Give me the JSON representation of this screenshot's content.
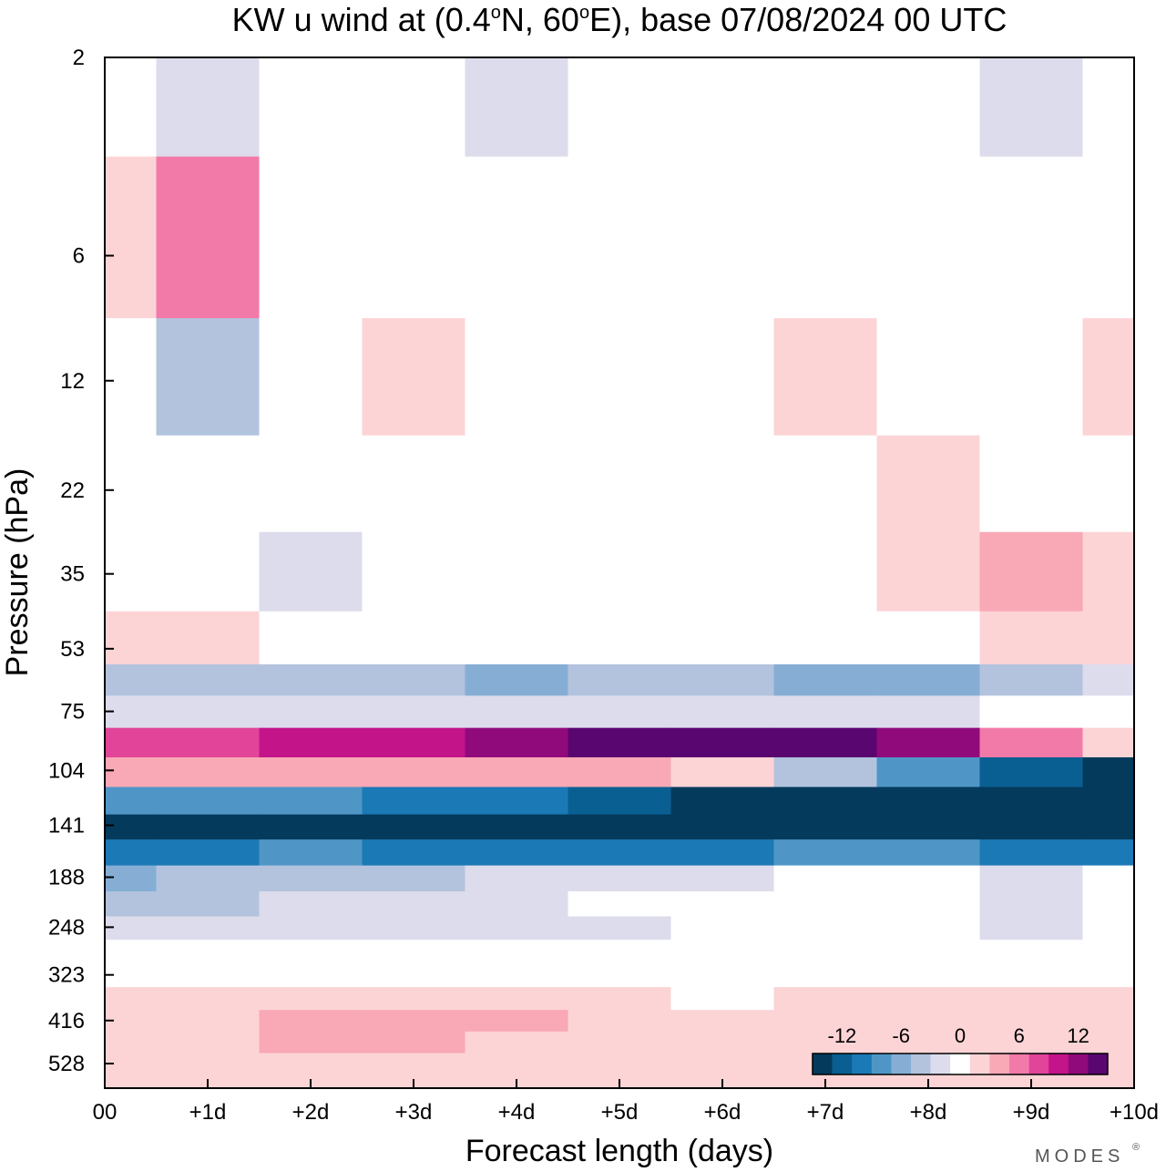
{
  "chart_data": {
    "type": "heatmap",
    "title_prefix": "KW u wind at (0.4",
    "title_lat": "N, 60",
    "title_suffix": "E),  base 07/08/2024  00 UTC",
    "title_deg": "o",
    "xlabel": "Forecast length (days)",
    "ylabel": "Pressure (hPa)",
    "x_tick_labels": [
      "00",
      "+1d",
      "+2d",
      "+3d",
      "+4d",
      "+5d",
      "+6d",
      "+7d",
      "+8d",
      "+9d",
      "+10d"
    ],
    "xlim": [
      0,
      10
    ],
    "y_tick_labels": [
      "2",
      "6",
      "12",
      "22",
      "35",
      "53",
      "75",
      "104",
      "141",
      "188",
      "248",
      "323",
      "416",
      "528"
    ],
    "colorbar": {
      "tick_labels": [
        "-12",
        "-6",
        "0",
        "6",
        "12"
      ],
      "colors": [
        "#043a5c",
        "#0a5f92",
        "#1b79b6",
        "#4f96c6",
        "#86aed5",
        "#b3c3de",
        "#dcdcec",
        "#ffffff",
        "#fcd4d6",
        "#f9a8b6",
        "#f27aa8",
        "#e14499",
        "#c3148a",
        "#900a7c",
        "#5a0670"
      ]
    },
    "bands": [
      {
        "pressure": 2,
        "u": [
          0,
          -2,
          0,
          0,
          -3,
          0,
          -1,
          0,
          0,
          -3,
          0
        ]
      },
      {
        "pressure": 6,
        "u": [
          2,
          5,
          0,
          0,
          0,
          -1,
          0,
          0,
          0,
          0,
          0
        ]
      },
      {
        "pressure": 12,
        "u": [
          -1,
          -4,
          0,
          2,
          0,
          -1,
          0,
          2,
          -1,
          0,
          2
        ]
      },
      {
        "pressure": 22,
        "u": [
          0,
          0,
          -1,
          0,
          0,
          0,
          0,
          0,
          2,
          -1,
          -1
        ]
      },
      {
        "pressure": 35,
        "u": [
          0,
          -1,
          -2,
          0,
          0,
          0,
          -1,
          0,
          2,
          3,
          2
        ]
      },
      {
        "pressure": 53,
        "u": [
          2,
          2,
          0,
          0,
          0,
          0,
          0,
          0,
          0,
          2,
          2
        ]
      },
      {
        "pressure": 63,
        "u": [
          -5,
          -4,
          -5,
          -5,
          -6,
          -5,
          -5,
          -6,
          -6,
          -4,
          -2
        ]
      },
      {
        "pressure": 75,
        "u": [
          -2,
          -2,
          -2,
          -2,
          -2,
          -2,
          -2,
          -2,
          -2,
          -1,
          0
        ]
      },
      {
        "pressure": 90,
        "u": [
          7,
          8,
          10,
          10,
          12,
          13,
          14,
          13,
          11,
          5,
          1
        ]
      },
      {
        "pressure": 104,
        "u": [
          3,
          3,
          3,
          3,
          3,
          3,
          2,
          -4,
          -8,
          -12,
          -14
        ]
      },
      {
        "pressure": 125,
        "u": [
          -8,
          -9,
          -8,
          -10,
          -11,
          -12,
          -14,
          -15,
          -16,
          -16,
          -16
        ]
      },
      {
        "pressure": 141,
        "u": [
          -16,
          -15,
          -16,
          -16,
          -16,
          -16,
          -16,
          -16,
          -16,
          -16,
          -16
        ]
      },
      {
        "pressure": 165,
        "u": [
          -10,
          -11,
          -9,
          -10,
          -10,
          -11,
          -10,
          -9,
          -9,
          -10,
          -10
        ]
      },
      {
        "pressure": 188,
        "u": [
          -6,
          -5,
          -5,
          -4,
          -3,
          -3,
          -2,
          -1,
          -1,
          -2,
          -1
        ]
      },
      {
        "pressure": 220,
        "u": [
          -4,
          -4,
          -3,
          -3,
          -3,
          -1,
          0,
          -1,
          -1,
          -3,
          -1
        ]
      },
      {
        "pressure": 248,
        "u": [
          -3,
          -2,
          -2,
          -2,
          -2,
          -2,
          -1,
          -1,
          -1,
          -2,
          -1
        ]
      },
      {
        "pressure": 285,
        "u": [
          -1,
          0,
          0,
          0,
          0,
          0,
          0,
          -1,
          0,
          -1,
          -1
        ]
      },
      {
        "pressure": 323,
        "u": [
          0,
          0,
          0,
          0,
          0,
          0,
          0,
          0,
          0,
          0,
          0
        ]
      },
      {
        "pressure": 370,
        "u": [
          1,
          1,
          1,
          2,
          2,
          1,
          0,
          1,
          2,
          2,
          1
        ]
      },
      {
        "pressure": 416,
        "u": [
          2,
          2,
          3,
          3,
          3,
          2,
          1,
          1,
          2,
          2,
          2
        ]
      },
      {
        "pressure": 470,
        "u": [
          1,
          2,
          3,
          3,
          2,
          1,
          1,
          1,
          2,
          2,
          1
        ]
      },
      {
        "pressure": 528,
        "u": [
          2,
          1,
          1,
          2,
          2,
          1,
          1,
          1,
          1,
          1,
          1
        ]
      }
    ]
  },
  "branding": {
    "logo_text": "MODES",
    "logo_mark": "®"
  }
}
